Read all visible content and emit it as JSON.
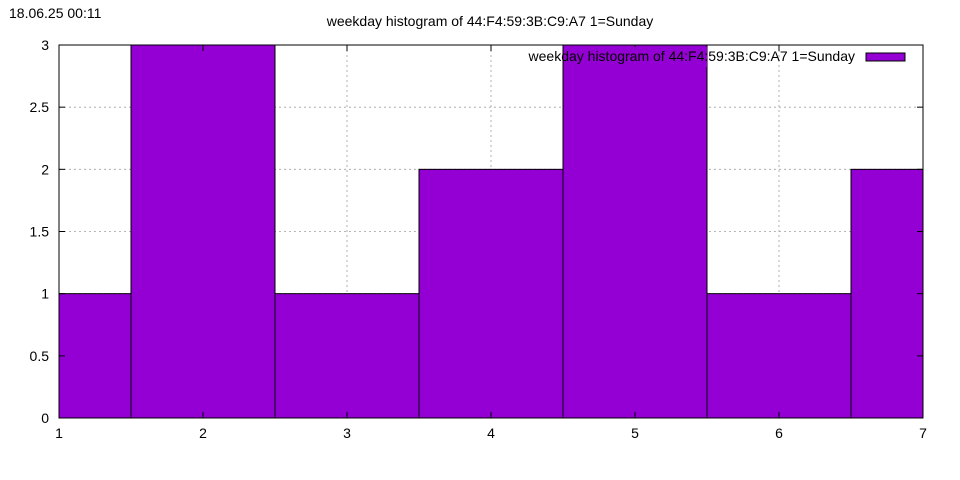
{
  "timestamp": "18.06.25 00:11",
  "chart_data": {
    "type": "bar",
    "title": "weekday histogram of 44:F4:59:3B:C9:A7 1=Sunday",
    "xlabel": "",
    "ylabel": "",
    "x": [
      1,
      2,
      3,
      4,
      5,
      6,
      7
    ],
    "values": [
      1,
      3,
      1,
      2,
      3,
      1,
      2
    ],
    "bar_width": 1,
    "xlim": [
      1,
      7
    ],
    "ylim": [
      0,
      3
    ],
    "xticks": [
      "1",
      "2",
      "3",
      "4",
      "5",
      "6",
      "7"
    ],
    "yticks": [
      "0",
      "0.5",
      "1",
      "1.5",
      "2",
      "2.5",
      "3"
    ],
    "grid": true,
    "legend": {
      "position": "top-right",
      "label": "weekday histogram of 44:F4:59:3B:C9:A7 1=Sunday"
    },
    "colors": {
      "bar": "#9400d3",
      "grid": "#a0a0a0",
      "axis": "#000000"
    }
  }
}
